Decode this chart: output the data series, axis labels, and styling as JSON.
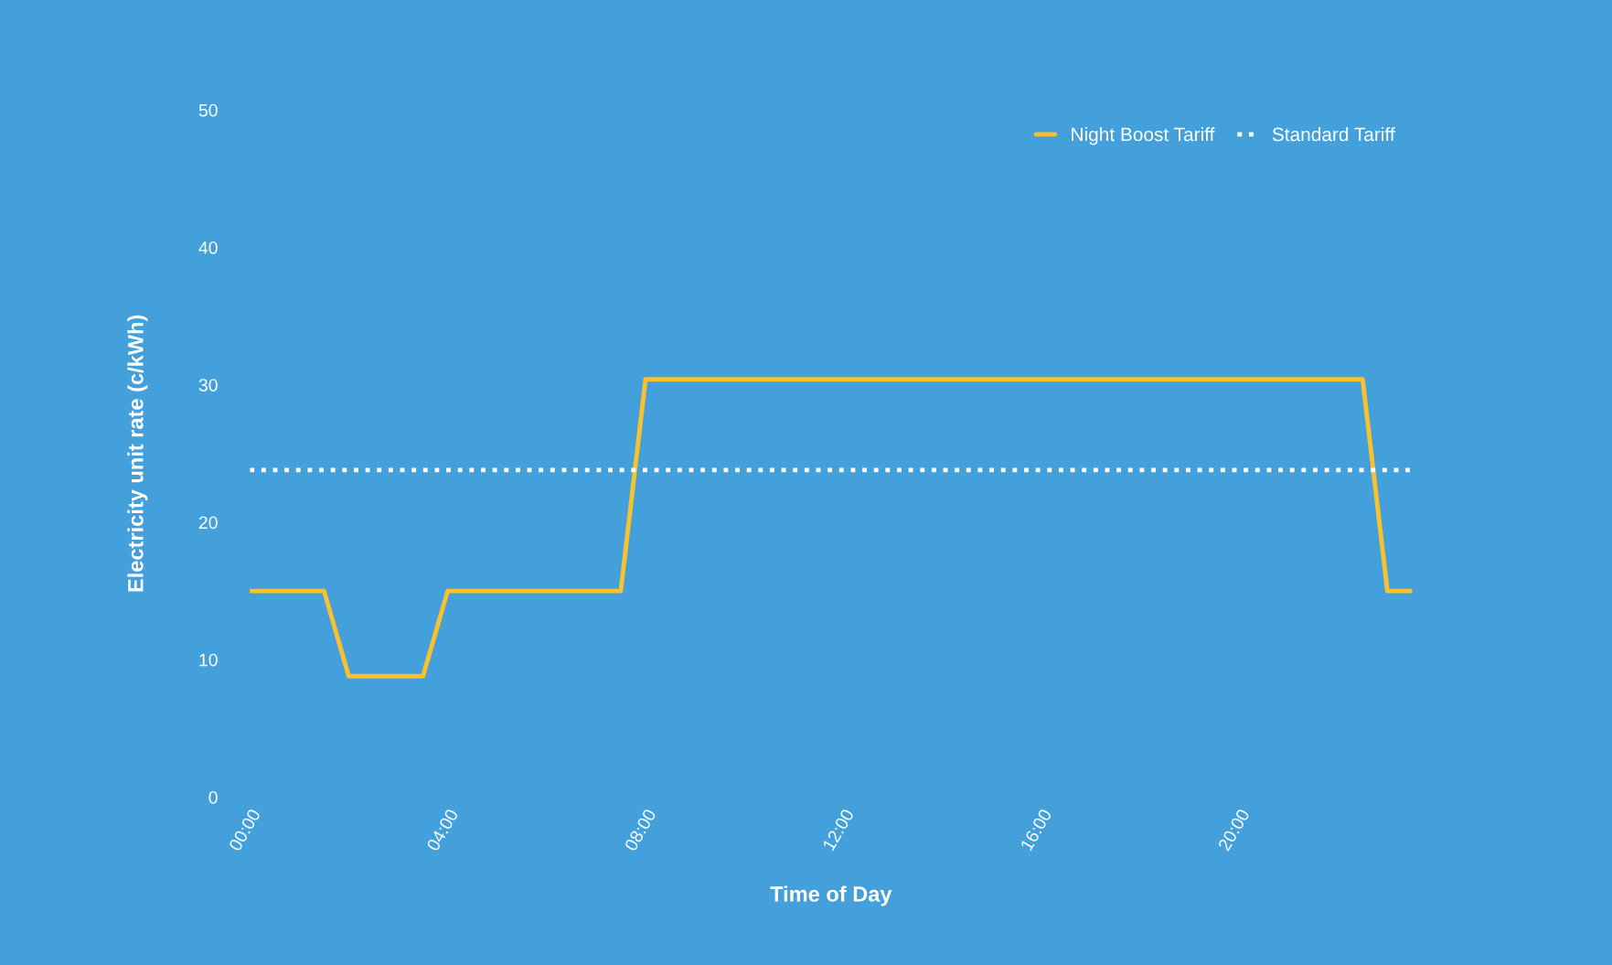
{
  "chart_data": {
    "type": "line",
    "xlabel": "Time of Day",
    "ylabel": "Electricity unit rate (c/kWh)",
    "xlim": [
      0,
      23.5
    ],
    "xticks": [
      {
        "value": 0,
        "label": "00:00"
      },
      {
        "value": 4,
        "label": "04:00"
      },
      {
        "value": 8,
        "label": "08:00"
      },
      {
        "value": 12,
        "label": "12:00"
      },
      {
        "value": 16,
        "label": "16:00"
      },
      {
        "value": 20,
        "label": "20:00"
      }
    ],
    "ylim": [
      0,
      50
    ],
    "yticks": [
      0,
      10,
      20,
      30,
      40,
      50
    ],
    "grid": false,
    "legend": "top right",
    "series": [
      {
        "name": "Night Boost Tariff",
        "color": "#fbc02d",
        "line_style": "solid",
        "x": [
          0,
          1.5,
          2,
          3.5,
          4,
          7.5,
          8,
          22.5,
          23,
          23.5
        ],
        "values": [
          15,
          15,
          8.8,
          8.8,
          15,
          15,
          30.4,
          30.4,
          15,
          15
        ]
      },
      {
        "name": "Standard Tariff",
        "color": "#ffffff",
        "line_style": "dotted",
        "x": [
          0,
          23.5
        ],
        "values": [
          23.8,
          23.8
        ]
      }
    ]
  }
}
